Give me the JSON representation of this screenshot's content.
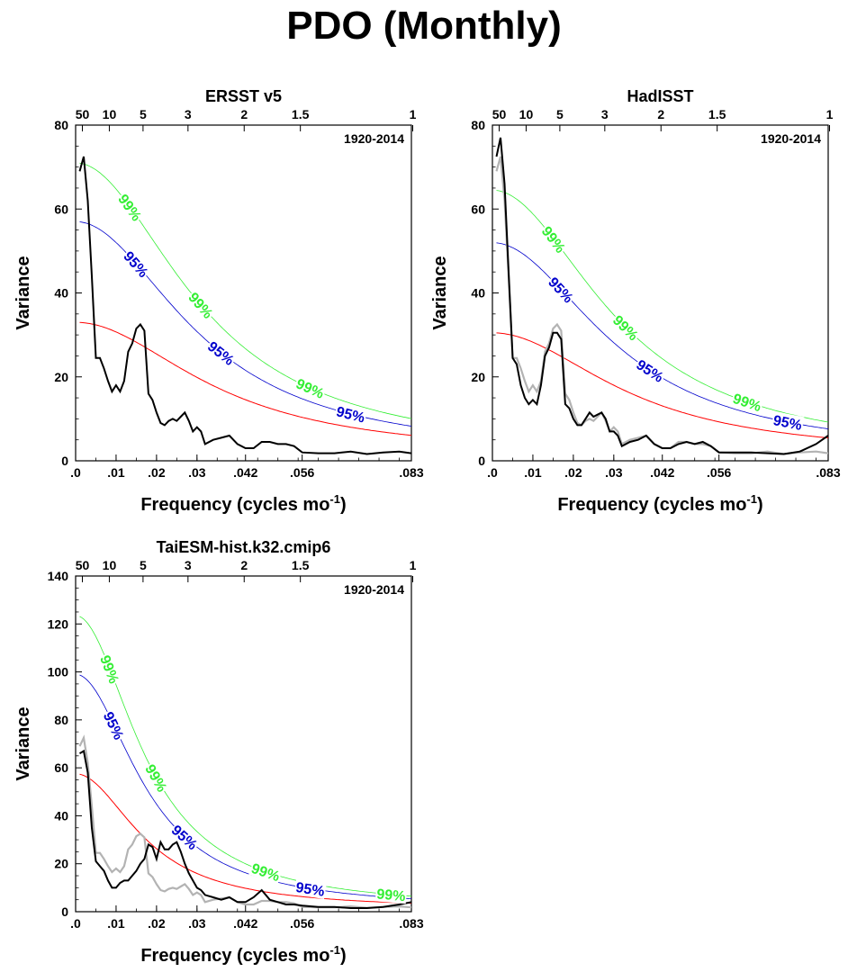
{
  "title": "PDO (Monthly)",
  "chart_data": [
    {
      "type": "line",
      "title": "ERSST v5",
      "period": "1920-2014",
      "xlabel": "Frequency (cycles mo",
      "xlabel_sup": "-1",
      "ylabel": "Variance",
      "xlim": [
        0,
        0.083
      ],
      "ylim": [
        0,
        80
      ],
      "yticks": [
        0,
        20,
        40,
        60,
        80
      ],
      "xticks": [
        {
          "value": 0,
          "label": ".0"
        },
        {
          "value": 0.01,
          "label": ".01"
        },
        {
          "value": 0.02,
          "label": ".02"
        },
        {
          "value": 0.03,
          "label": ".03"
        },
        {
          "value": 0.042,
          "label": ".042"
        },
        {
          "value": 0.056,
          "label": ".056"
        },
        {
          "value": 0.083,
          "label": ".083"
        }
      ],
      "period_ticks": [
        {
          "value": 50,
          "label": "50"
        },
        {
          "value": 10,
          "label": "10"
        },
        {
          "value": 5,
          "label": "5"
        },
        {
          "value": 3,
          "label": "3"
        },
        {
          "value": 2,
          "label": "2"
        },
        {
          "value": 1.5,
          "label": "1.5"
        },
        {
          "value": 1,
          "label": "1"
        }
      ],
      "spectrum": {
        "x": [
          0.001,
          0.002,
          0.003,
          0.004,
          0.005,
          0.006,
          0.007,
          0.008,
          0.009,
          0.01,
          0.011,
          0.012,
          0.013,
          0.014,
          0.015,
          0.016,
          0.017,
          0.018,
          0.019,
          0.02,
          0.021,
          0.022,
          0.023,
          0.024,
          0.025,
          0.026,
          0.027,
          0.028,
          0.029,
          0.03,
          0.031,
          0.032,
          0.034,
          0.036,
          0.038,
          0.04,
          0.042,
          0.044,
          0.046,
          0.048,
          0.05,
          0.052,
          0.054,
          0.056,
          0.06,
          0.064,
          0.068,
          0.072,
          0.076,
          0.08,
          0.083
        ],
        "y": [
          69,
          72.5,
          62,
          44,
          24.5,
          24.5,
          22,
          19,
          16.5,
          18,
          16.5,
          19,
          26,
          28,
          31.5,
          32.5,
          31,
          16,
          14.5,
          11.5,
          9,
          8.5,
          9.5,
          10,
          9.5,
          10.5,
          11.5,
          9.5,
          7,
          8,
          7,
          4,
          5,
          5.5,
          6,
          4,
          3,
          3,
          4.5,
          4.5,
          4,
          4,
          3.5,
          2,
          1.8,
          1.8,
          2.2,
          1.6,
          2,
          2.2,
          1.8
        ]
      },
      "red_noise": {
        "r1": 32,
        "decay": 0.036
      },
      "conf95": {
        "label": "95%",
        "r1": 56,
        "decay": 0.032
      },
      "conf99": {
        "label": "99%",
        "r1": 70,
        "decay": 0.032
      },
      "label_x": {
        "conf99": [
          0.0135,
          0.031,
          0.058
        ],
        "conf95": [
          0.015,
          0.036,
          0.068
        ]
      }
    },
    {
      "type": "line",
      "title": "HadISST",
      "period": "1920-2014",
      "xlabel": "Frequency (cycles mo",
      "xlabel_sup": "-1",
      "ylabel": "Variance",
      "xlim": [
        0,
        0.083
      ],
      "ylim": [
        0,
        80
      ],
      "yticks": [
        0,
        20,
        40,
        60,
        80
      ],
      "xticks": [
        {
          "value": 0,
          "label": ".0"
        },
        {
          "value": 0.01,
          "label": ".01"
        },
        {
          "value": 0.02,
          "label": ".02"
        },
        {
          "value": 0.03,
          "label": ".03"
        },
        {
          "value": 0.042,
          "label": ".042"
        },
        {
          "value": 0.056,
          "label": ".056"
        },
        {
          "value": 0.083,
          "label": ".083"
        }
      ],
      "period_ticks": [
        {
          "value": 50,
          "label": "50"
        },
        {
          "value": 10,
          "label": "10"
        },
        {
          "value": 5,
          "label": "5"
        },
        {
          "value": 3,
          "label": "3"
        },
        {
          "value": 2,
          "label": "2"
        },
        {
          "value": 1.5,
          "label": "1.5"
        },
        {
          "value": 1,
          "label": "1"
        }
      ],
      "spectrum": {
        "x": [
          0.001,
          0.002,
          0.003,
          0.004,
          0.005,
          0.006,
          0.007,
          0.008,
          0.009,
          0.01,
          0.011,
          0.012,
          0.013,
          0.014,
          0.015,
          0.016,
          0.017,
          0.018,
          0.019,
          0.02,
          0.021,
          0.022,
          0.023,
          0.024,
          0.025,
          0.026,
          0.027,
          0.028,
          0.029,
          0.03,
          0.031,
          0.032,
          0.034,
          0.036,
          0.038,
          0.04,
          0.042,
          0.044,
          0.046,
          0.048,
          0.05,
          0.052,
          0.054,
          0.056,
          0.06,
          0.064,
          0.068,
          0.072,
          0.076,
          0.08,
          0.083
        ],
        "y": [
          72.5,
          77,
          66,
          45,
          24.5,
          23,
          18,
          15,
          13.5,
          14.5,
          13.5,
          18,
          25,
          27,
          30.5,
          30.5,
          29,
          13.5,
          12.5,
          10,
          8.5,
          8.5,
          10,
          11.5,
          10.5,
          11,
          11.5,
          10,
          7,
          7,
          6,
          3.5,
          4.5,
          5,
          6,
          4,
          3,
          3,
          4,
          4.5,
          4,
          4.5,
          3.5,
          2,
          2,
          2,
          1.8,
          1.6,
          2.2,
          4,
          6
        ]
      },
      "spectrum_ref": {
        "x": [
          0.001,
          0.002,
          0.003,
          0.004,
          0.005,
          0.006,
          0.007,
          0.008,
          0.009,
          0.01,
          0.011,
          0.012,
          0.013,
          0.014,
          0.015,
          0.016,
          0.017,
          0.018,
          0.019,
          0.02,
          0.021,
          0.022,
          0.023,
          0.024,
          0.025,
          0.026,
          0.027,
          0.028,
          0.029,
          0.03,
          0.031,
          0.032,
          0.034,
          0.036,
          0.038,
          0.04,
          0.042,
          0.044,
          0.046,
          0.048,
          0.05,
          0.052,
          0.054,
          0.056,
          0.06,
          0.064,
          0.068,
          0.072,
          0.076,
          0.08,
          0.083
        ],
        "y": [
          69,
          72.5,
          62,
          44,
          24.5,
          24.5,
          22,
          19,
          16.5,
          18,
          16.5,
          19,
          26,
          28,
          31.5,
          32.5,
          31,
          16,
          14.5,
          11.5,
          9,
          8.5,
          9.5,
          10,
          9.5,
          10.5,
          11.5,
          9.5,
          7,
          8,
          7,
          4,
          5,
          5.5,
          6,
          4,
          3,
          3,
          4.5,
          4.5,
          4,
          4,
          3.5,
          2,
          1.8,
          1.8,
          2.2,
          1.6,
          2,
          2.2,
          1.8
        ]
      },
      "red_noise": {
        "r1": 29.5,
        "decay": 0.035
      },
      "conf95": {
        "label": "95%",
        "r1": 51,
        "decay": 0.032
      },
      "conf99": {
        "label": "99%",
        "r1": 63.5,
        "decay": 0.032
      },
      "label_x": {
        "conf99": [
          0.0152,
          0.033,
          0.063
        ],
        "conf95": [
          0.017,
          0.039,
          0.073
        ]
      }
    },
    {
      "type": "line",
      "title": "TaiESM-hist.k32.cmip6",
      "period": "1920-2014",
      "xlabel": "Frequency (cycles mo",
      "xlabel_sup": "-1",
      "ylabel": "Variance",
      "xlim": [
        0,
        0.083
      ],
      "ylim": [
        0,
        140
      ],
      "yticks": [
        0,
        20,
        40,
        60,
        80,
        100,
        120,
        140
      ],
      "xticks": [
        {
          "value": 0,
          "label": ".0"
        },
        {
          "value": 0.01,
          "label": ".01"
        },
        {
          "value": 0.02,
          "label": ".02"
        },
        {
          "value": 0.03,
          "label": ".03"
        },
        {
          "value": 0.042,
          "label": ".042"
        },
        {
          "value": 0.056,
          "label": ".056"
        },
        {
          "value": 0.083,
          "label": ".083"
        }
      ],
      "period_ticks": [
        {
          "value": 50,
          "label": "50"
        },
        {
          "value": 10,
          "label": "10"
        },
        {
          "value": 5,
          "label": "5"
        },
        {
          "value": 3,
          "label": "3"
        },
        {
          "value": 2,
          "label": "2"
        },
        {
          "value": 1.5,
          "label": "1.5"
        },
        {
          "value": 1,
          "label": "1"
        }
      ],
      "spectrum": {
        "x": [
          0.001,
          0.002,
          0.003,
          0.004,
          0.005,
          0.006,
          0.007,
          0.008,
          0.009,
          0.01,
          0.011,
          0.012,
          0.013,
          0.014,
          0.015,
          0.016,
          0.017,
          0.018,
          0.019,
          0.02,
          0.021,
          0.022,
          0.023,
          0.024,
          0.025,
          0.026,
          0.027,
          0.028,
          0.029,
          0.03,
          0.031,
          0.032,
          0.034,
          0.036,
          0.038,
          0.04,
          0.042,
          0.044,
          0.046,
          0.048,
          0.05,
          0.052,
          0.054,
          0.056,
          0.06,
          0.064,
          0.068,
          0.072,
          0.076,
          0.08,
          0.083
        ],
        "y": [
          66,
          67,
          58,
          35,
          21,
          19,
          17,
          13,
          10,
          10,
          12,
          13,
          13,
          15,
          17,
          20,
          22,
          28,
          27,
          22,
          29,
          26,
          26,
          28,
          29,
          25,
          20,
          16,
          13,
          10,
          9,
          7,
          6,
          5,
          6,
          4,
          4,
          6,
          9,
          5,
          4,
          3,
          3,
          2.5,
          2,
          2,
          1.5,
          1.5,
          2,
          3,
          4
        ]
      },
      "spectrum_ref": {
        "x": [
          0.001,
          0.002,
          0.003,
          0.004,
          0.005,
          0.006,
          0.007,
          0.008,
          0.009,
          0.01,
          0.011,
          0.012,
          0.013,
          0.014,
          0.015,
          0.016,
          0.017,
          0.018,
          0.019,
          0.02,
          0.021,
          0.022,
          0.023,
          0.024,
          0.025,
          0.026,
          0.027,
          0.028,
          0.029,
          0.03,
          0.031,
          0.032,
          0.034,
          0.036,
          0.038,
          0.04,
          0.042,
          0.044,
          0.046,
          0.048,
          0.05,
          0.052,
          0.054,
          0.056,
          0.06,
          0.064,
          0.068,
          0.072,
          0.076,
          0.08,
          0.083
        ],
        "y": [
          69,
          72.5,
          62,
          44,
          24.5,
          24.5,
          22,
          19,
          16.5,
          18,
          16.5,
          19,
          26,
          28,
          31.5,
          32.5,
          31,
          16,
          14.5,
          11.5,
          9,
          8.5,
          9.5,
          10,
          9.5,
          10.5,
          11.5,
          9.5,
          7,
          8,
          7,
          4,
          5,
          5.5,
          6,
          4,
          3,
          3,
          4.5,
          4.5,
          4,
          4,
          3.5,
          2,
          1.8,
          1.8,
          2.2,
          1.6,
          2,
          2.2,
          1.8
        ]
      },
      "red_noise": {
        "r1": 56.5,
        "decay": 0.018
      },
      "conf95": {
        "label": "95%",
        "r1": 98,
        "decay": 0.018
      },
      "conf99": {
        "label": "99%",
        "r1": 122.5,
        "decay": 0.018
      },
      "label_x": {
        "conf99": [
          0.0085,
          0.02,
          0.047,
          0.078
        ],
        "conf95": [
          0.0095,
          0.027,
          0.058
        ]
      }
    }
  ],
  "colors": {
    "spectrum": "#000000",
    "spectrum_ref": "#b3b3b3",
    "red_noise": "#ff0000",
    "conf95": "#0000cc",
    "conf99": "#33ee33"
  }
}
